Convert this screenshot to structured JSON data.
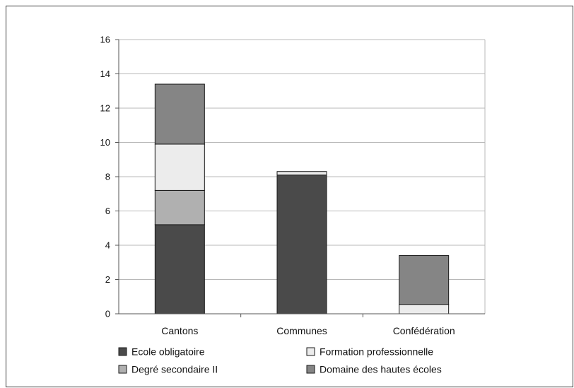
{
  "chart_data": {
    "type": "bar",
    "stacked": true,
    "categories": [
      "Cantons",
      "Communes",
      "Confédération"
    ],
    "series": [
      {
        "name": "Ecole obligatoire",
        "color": "#4a4a4a",
        "values": [
          5.2,
          8.1,
          0.0
        ]
      },
      {
        "name": "Degré secondaire II",
        "color": "#b0b0b0",
        "values": [
          2.0,
          0.0,
          0.0
        ]
      },
      {
        "name": "Formation professionnelle",
        "color": "#ececec",
        "values": [
          2.7,
          0.2,
          0.55
        ]
      },
      {
        "name": "Domaine des hautes écoles",
        "color": "#858585",
        "values": [
          3.5,
          0.0,
          2.85
        ]
      }
    ],
    "ylim": [
      0,
      16
    ],
    "yticks": [
      0,
      2,
      4,
      6,
      8,
      10,
      12,
      14,
      16
    ],
    "grid": true,
    "legend": "bottom"
  },
  "legend": {
    "items": [
      {
        "label": "Ecole obligatoire",
        "color": "#4a4a4a"
      },
      {
        "label": "Formation professionnelle",
        "color": "#ececec"
      },
      {
        "label": "Degré secondaire II",
        "color": "#b0b0b0"
      },
      {
        "label": "Domaine des hautes écoles",
        "color": "#858585"
      }
    ]
  }
}
